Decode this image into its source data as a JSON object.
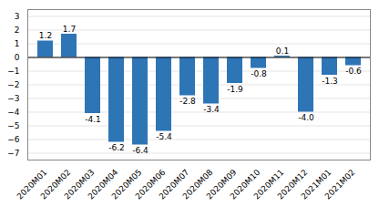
{
  "chart_data": {
    "type": "bar",
    "categories": [
      "2020M01",
      "2020M02",
      "2020M03",
      "2020M04",
      "2020M05",
      "2020M06",
      "2020M07",
      "2020M08",
      "2020M09",
      "2020M10",
      "2020M11",
      "2020M12",
      "2021M01",
      "2021M02"
    ],
    "values": [
      1.2,
      1.7,
      -4.1,
      -6.2,
      -6.4,
      -5.4,
      -2.8,
      -3.4,
      -1.9,
      -0.8,
      0.1,
      -4.0,
      -1.3,
      -0.6
    ],
    "value_labels": [
      "1.2",
      "1.7",
      "-4.1",
      "-6.2",
      "-6.4",
      "-5.4",
      "-2.8",
      "-3.4",
      "-1.9",
      "-0.8",
      "0.1",
      "-4.0",
      "-1.3",
      "-0.6"
    ],
    "color": "#2e75b6",
    "ylim": [
      -7.5,
      3.5
    ],
    "yticks": [
      -7,
      -6,
      -5,
      -4,
      -3,
      -2,
      -1,
      0,
      1,
      2,
      3
    ],
    "grid": true,
    "data_labels": true
  }
}
